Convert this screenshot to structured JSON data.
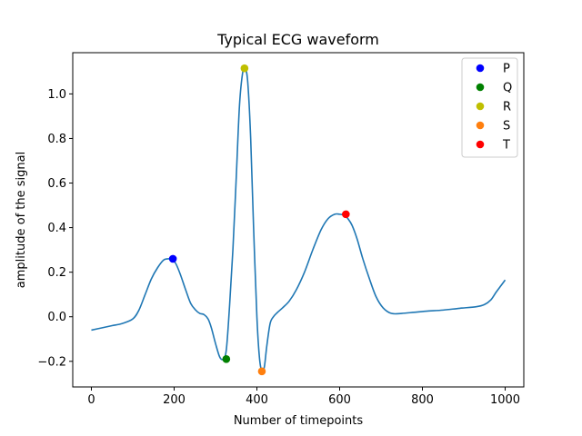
{
  "chart_data": {
    "type": "line",
    "title": "Typical ECG waveform",
    "xlabel": "Number of timepoints",
    "ylabel": "amplitude of the signal",
    "xlim": [
      -45,
      1045
    ],
    "ylim": [
      -0.315,
      1.185
    ],
    "xticks": [
      0,
      200,
      400,
      600,
      800,
      1000
    ],
    "yticks": [
      -0.2,
      0.0,
      0.2,
      0.4,
      0.6,
      0.8,
      1.0
    ],
    "ytick_labels": [
      "−0.2",
      "0.0",
      "0.2",
      "0.4",
      "0.6",
      "0.8",
      "1.0"
    ],
    "grid": false,
    "legend_position": "top-right",
    "line_color": "#1f77b4",
    "signal": {
      "x": [
        0,
        25,
        50,
        75,
        100,
        115,
        130,
        145,
        160,
        175,
        188,
        197,
        205,
        215,
        228,
        240,
        252,
        262,
        272,
        282,
        290,
        300,
        310,
        318,
        326,
        334,
        342,
        350,
        358,
        366,
        372,
        378,
        385,
        392,
        400,
        406,
        412,
        418,
        424,
        432,
        440,
        450,
        462,
        478,
        495,
        515,
        535,
        555,
        572,
        588,
        600,
        612,
        620,
        630,
        642,
        656,
        672,
        688,
        705,
        725,
        750,
        780,
        810,
        850,
        890,
        930,
        950,
        965,
        978,
        990,
        1000
      ],
      "y": [
        -0.06,
        -0.05,
        -0.04,
        -0.03,
        -0.01,
        0.03,
        0.1,
        0.17,
        0.22,
        0.255,
        0.26,
        0.255,
        0.235,
        0.19,
        0.12,
        0.06,
        0.03,
        0.015,
        0.01,
        -0.01,
        -0.05,
        -0.12,
        -0.18,
        -0.19,
        -0.15,
        0.05,
        0.3,
        0.62,
        0.95,
        1.1,
        1.115,
        1.05,
        0.8,
        0.4,
        0.0,
        -0.18,
        -0.245,
        -0.225,
        -0.13,
        -0.03,
        0.0,
        0.02,
        0.04,
        0.07,
        0.12,
        0.2,
        0.3,
        0.39,
        0.44,
        0.46,
        0.46,
        0.455,
        0.44,
        0.41,
        0.35,
        0.26,
        0.17,
        0.09,
        0.04,
        0.015,
        0.015,
        0.02,
        0.025,
        0.03,
        0.038,
        0.045,
        0.055,
        0.075,
        0.11,
        0.14,
        0.165
      ]
    },
    "points": [
      {
        "name": "P",
        "x": 197,
        "y": 0.26,
        "color": "#0000ff"
      },
      {
        "name": "Q",
        "x": 326,
        "y": -0.19,
        "color": "#008000"
      },
      {
        "name": "R",
        "x": 370,
        "y": 1.115,
        "color": "#bfbf00"
      },
      {
        "name": "S",
        "x": 412,
        "y": -0.245,
        "color": "#ff7f0e"
      },
      {
        "name": "T",
        "x": 615,
        "y": 0.46,
        "color": "#ff0000"
      }
    ]
  }
}
